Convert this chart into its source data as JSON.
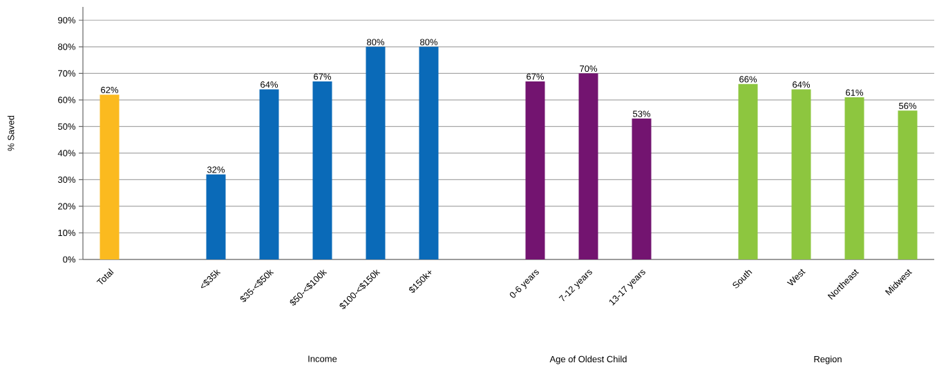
{
  "chart_data": {
    "type": "bar",
    "ylabel": "% Saved",
    "categories": [
      "Total",
      null,
      "<$35k",
      "$35-<$50k",
      "$50-<$100k",
      "$100-<$150k",
      "$150k+",
      null,
      "0-6 years",
      "7-12 years",
      "13-17 years",
      null,
      "South",
      "West",
      "Northeast",
      "Midwest"
    ],
    "values": [
      62,
      null,
      32,
      64,
      67,
      80,
      80,
      null,
      67,
      70,
      53,
      null,
      66,
      64,
      61,
      56
    ],
    "value_labels": [
      "62%",
      null,
      "32%",
      "64%",
      "67%",
      "80%",
      "80%",
      null,
      "67%",
      "70%",
      "53%",
      null,
      "66%",
      "64%",
      "61%",
      "56%"
    ],
    "colors": [
      "#fbba1f",
      null,
      "#0a6ab8",
      "#0a6ab8",
      "#0a6ab8",
      "#0a6ab8",
      "#0a6ab8",
      null,
      "#731470",
      "#731470",
      "#731470",
      null,
      "#8dc63f",
      "#8dc63f",
      "#8dc63f",
      "#8dc63f"
    ],
    "ylim": [
      0,
      95
    ],
    "yticks": [
      {
        "value": 0,
        "label": "0%"
      },
      {
        "value": 10,
        "label": "10%"
      },
      {
        "value": 20,
        "label": "20%"
      },
      {
        "value": 30,
        "label": "30%"
      },
      {
        "value": 40,
        "label": "40%"
      },
      {
        "value": 50,
        "label": "50%"
      },
      {
        "value": 60,
        "label": "60%"
      },
      {
        "value": 70,
        "label": "70%"
      },
      {
        "value": 80,
        "label": "80%"
      },
      {
        "value": 90,
        "label": "90%"
      }
    ],
    "grid": "y",
    "annotations": [
      "Income",
      "Age of Oldest Child",
      "Region"
    ]
  }
}
